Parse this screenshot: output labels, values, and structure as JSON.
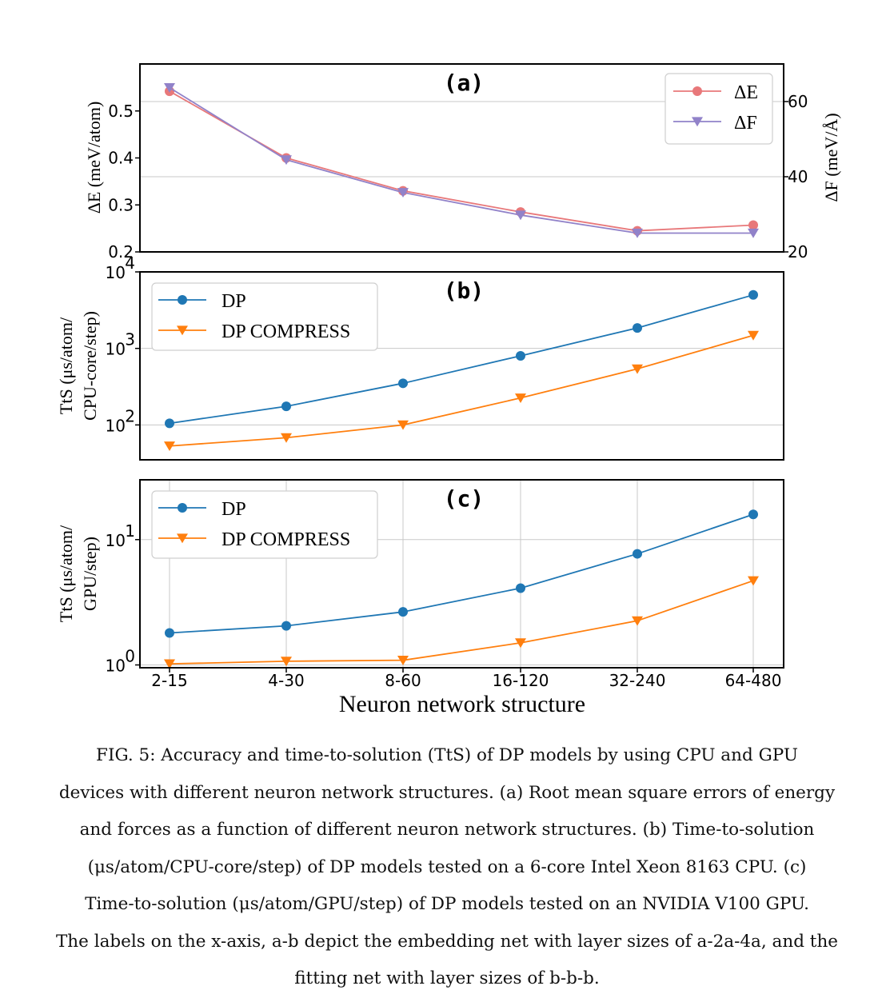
{
  "chart_data": [
    {
      "id": "a",
      "type": "line",
      "panel_label": "(a)",
      "categories": [
        "2-15",
        "4-30",
        "8-60",
        "16-120",
        "32-240",
        "64-480"
      ],
      "ylabel": "ΔE (meV/atom)",
      "ylabel_right": "ΔF (meV/Å)",
      "ylim": [
        0.2,
        0.6
      ],
      "ylim_right": [
        20,
        70
      ],
      "yticks": [
        0.2,
        0.3,
        0.4,
        0.5
      ],
      "yticks_right": [
        20,
        40,
        60
      ],
      "legend_position": "top-right",
      "series": [
        {
          "name": "ΔE",
          "axis": "left",
          "color": "#e8787a",
          "marker": "circle",
          "values": [
            0.542,
            0.4,
            0.33,
            0.285,
            0.245,
            0.257
          ]
        },
        {
          "name": "ΔF",
          "axis": "right",
          "color": "#9182c9",
          "marker": "triangle-down",
          "values": [
            63.7,
            44.5,
            35.8,
            29.8,
            25.0,
            25.0
          ]
        }
      ]
    },
    {
      "id": "b",
      "type": "line",
      "panel_label": "(b)",
      "categories": [
        "2-15",
        "4-30",
        "8-60",
        "16-120",
        "32-240",
        "64-480"
      ],
      "ylabel_lines": [
        "TtS (μs/atom/",
        "CPU-core/step)"
      ],
      "yscale": "log",
      "ylim": [
        35,
        10000
      ],
      "yticks": [
        {
          "base": "10",
          "exp": "2",
          "value": 100
        },
        {
          "base": "10",
          "exp": "3",
          "value": 1000
        },
        {
          "base": "10",
          "exp": "4",
          "value": 10000
        }
      ],
      "legend_position": "top-left",
      "series": [
        {
          "name": "DP",
          "color": "#1f77b4",
          "marker": "circle",
          "values": [
            105,
            175,
            350,
            800,
            1850,
            5000
          ]
        },
        {
          "name": "DP COMPRESS",
          "color": "#ff7f0e",
          "marker": "triangle-down",
          "values": [
            53,
            68,
            100,
            225,
            540,
            1480
          ]
        }
      ]
    },
    {
      "id": "c",
      "type": "line",
      "panel_label": "(c)",
      "categories": [
        "2-15",
        "4-30",
        "8-60",
        "16-120",
        "32-240",
        "64-480"
      ],
      "xlabel": "Neuron network structure",
      "ylabel_lines": [
        "TtS (μs/atom/",
        "GPU/step)"
      ],
      "yscale": "log",
      "ylim": [
        0.95,
        30
      ],
      "yticks": [
        {
          "base": "10",
          "exp": "0",
          "value": 1
        },
        {
          "base": "10",
          "exp": "1",
          "value": 10
        }
      ],
      "legend_position": "top-left",
      "series": [
        {
          "name": "DP",
          "color": "#1f77b4",
          "marker": "circle",
          "values": [
            1.8,
            2.05,
            2.65,
            4.1,
            7.7,
            15.9
          ]
        },
        {
          "name": "DP COMPRESS",
          "color": "#ff7f0e",
          "marker": "triangle-down",
          "values": [
            1.02,
            1.07,
            1.09,
            1.5,
            2.25,
            4.7
          ]
        }
      ]
    }
  ],
  "caption": {
    "lines": [
      "FIG. 5:  Accuracy and time-to-solution (TtS) of DP models by using CPU and GPU",
      "devices with different neuron network structures. (a) Root mean square errors of energy",
      "and forces as a function of different neuron network structures. (b) Time-to-solution",
      "(μs/atom/CPU-core/step) of DP models tested on a 6-core Intel Xeon 8163 CPU. (c)",
      "Time-to-solution (μs/atom/GPU/step) of DP models tested on an NVIDIA V100 GPU.",
      "The labels on the x-axis, a-b depict the embedding net with layer sizes of a-2a-4a, and the",
      "fitting net with layer sizes of b-b-b."
    ]
  }
}
